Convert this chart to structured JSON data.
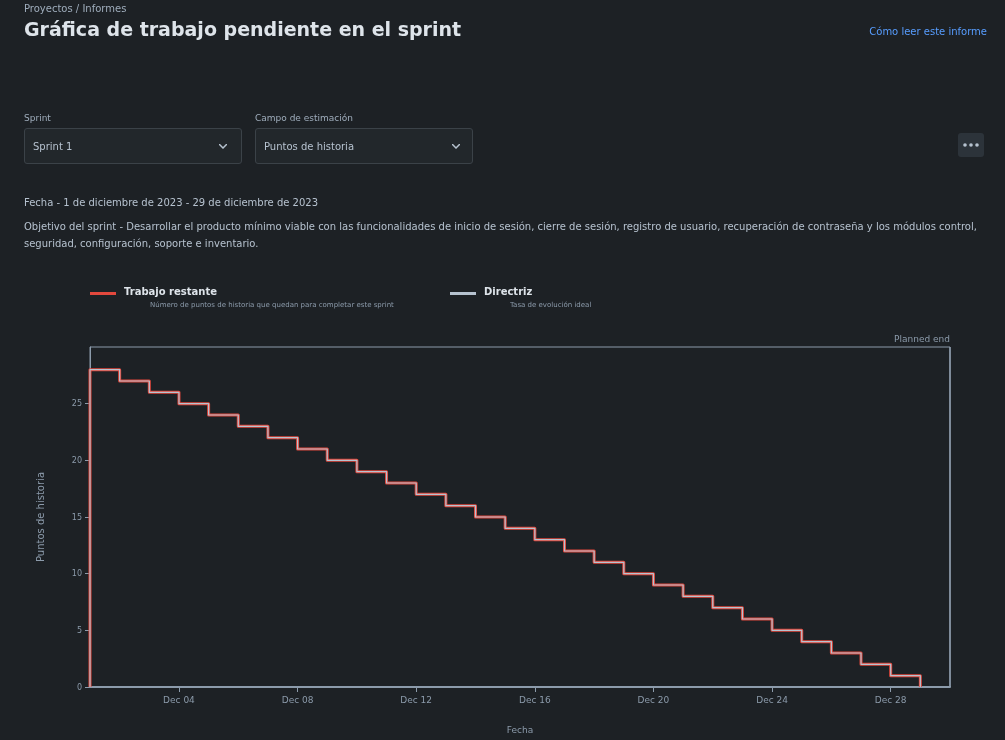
{
  "chart_data": {
    "type": "step",
    "title": "Gráfica de trabajo pendiente en el sprint",
    "xlabel": "Fecha",
    "ylabel": "Puntos de historia",
    "annotations": [
      "Proyectos / Informes",
      "Cómo leer este informe",
      "Sprint",
      "Sprint 1",
      "Campo de estimación",
      "Puntos de historia",
      "Fecha - 1 de diciembre de 2023 - 29 de diciembre de 2023",
      "Objetivo del sprint - Desarrollar el producto mínimo viable con las funcionalidades de inicio de sesión, cierre de sesión, registro de usuario, recuperación de contraseña y los módulos control, seguridad, configuración, soporte e inventario.",
      "Número de puntos de historia que quedan para completar este sprint",
      "Tasa de evolución ideal"
    ],
    "x": [
      "2023-12-01",
      "2023-12-01",
      "2023-12-02",
      "2023-12-03",
      "2023-12-04",
      "2023-12-05",
      "2023-12-06",
      "2023-12-07",
      "2023-12-08",
      "2023-12-09",
      "2023-12-10",
      "2023-12-11",
      "2023-12-12",
      "2023-12-13",
      "2023-12-14",
      "2023-12-15",
      "2023-12-16",
      "2023-12-17",
      "2023-12-18",
      "2023-12-19",
      "2023-12-20",
      "2023-12-21",
      "2023-12-22",
      "2023-12-23",
      "2023-12-24",
      "2023-12-25",
      "2023-12-26",
      "2023-12-27",
      "2023-12-28",
      "2023-12-29"
    ],
    "series": [
      {
        "name": "Trabajo restante",
        "color": "#e2483d",
        "values": [
          0,
          28,
          27,
          26,
          25,
          24,
          23,
          22,
          21,
          20,
          19,
          18,
          17,
          16,
          15,
          14,
          13,
          12,
          11,
          10,
          9,
          8,
          7,
          6,
          5,
          4,
          3,
          2,
          1,
          0
        ]
      },
      {
        "name": "Directriz",
        "color": "#b6c2cf",
        "values": [
          0,
          28,
          27,
          26,
          25,
          24,
          23,
          22,
          21,
          20,
          19,
          18,
          17,
          16,
          15,
          14,
          13,
          12,
          11,
          10,
          9,
          8,
          7,
          6,
          5,
          4,
          3,
          2,
          1,
          0
        ]
      }
    ],
    "xlim": [
      "2023-12-01",
      "2023-12-30"
    ],
    "xticks": [
      {
        "value": "2023-12-04",
        "label": "Dec 04"
      },
      {
        "value": "2023-12-08",
        "label": "Dec 08"
      },
      {
        "value": "2023-12-12",
        "label": "Dec 12"
      },
      {
        "value": "2023-12-16",
        "label": "Dec 16"
      },
      {
        "value": "2023-12-20",
        "label": "Dec 20"
      },
      {
        "value": "2023-12-24",
        "label": "Dec 24"
      },
      {
        "value": "2023-12-28",
        "label": "Dec 28"
      }
    ],
    "ylim": [
      0,
      30
    ],
    "yticks": [
      0,
      5,
      10,
      15,
      20,
      25
    ],
    "ref_lines": [
      {
        "axis": "x",
        "value": "2023-12-30",
        "label": "Planned end",
        "color": "#8c9bab"
      }
    ],
    "grid": false,
    "legend": "top left",
    "marker": "none",
    "line_style": "solid"
  }
}
